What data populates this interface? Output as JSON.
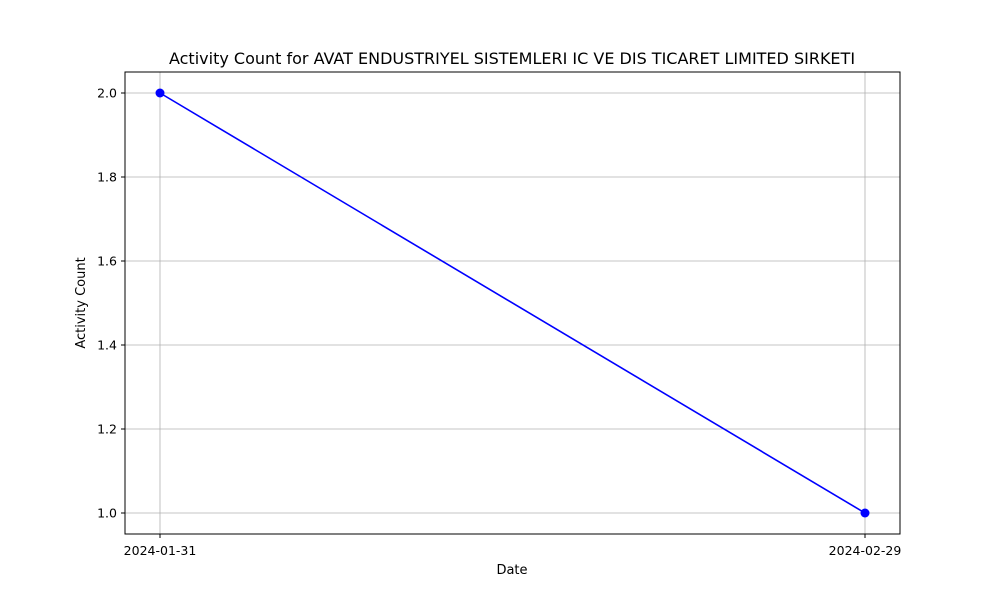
{
  "chart_data": {
    "type": "line",
    "title": "Activity Count for AVAT ENDUSTRIYEL SISTEMLERI IC VE DIS TICARET LIMITED SIRKETI",
    "xlabel": "Date",
    "ylabel": "Activity Count",
    "x": [
      "2024-01-31",
      "2024-02-29"
    ],
    "series": [
      {
        "values": [
          2,
          1
        ],
        "color": "#0000ff",
        "marker": "circle"
      }
    ],
    "yticks": [
      1.0,
      1.2,
      1.4,
      1.6,
      1.8,
      2.0
    ],
    "ytick_labels": [
      "1.0",
      "1.2",
      "1.4",
      "1.6",
      "1.8",
      "2.0"
    ],
    "ylim": [
      0.95,
      2.05
    ],
    "grid": true,
    "legend": "none"
  }
}
